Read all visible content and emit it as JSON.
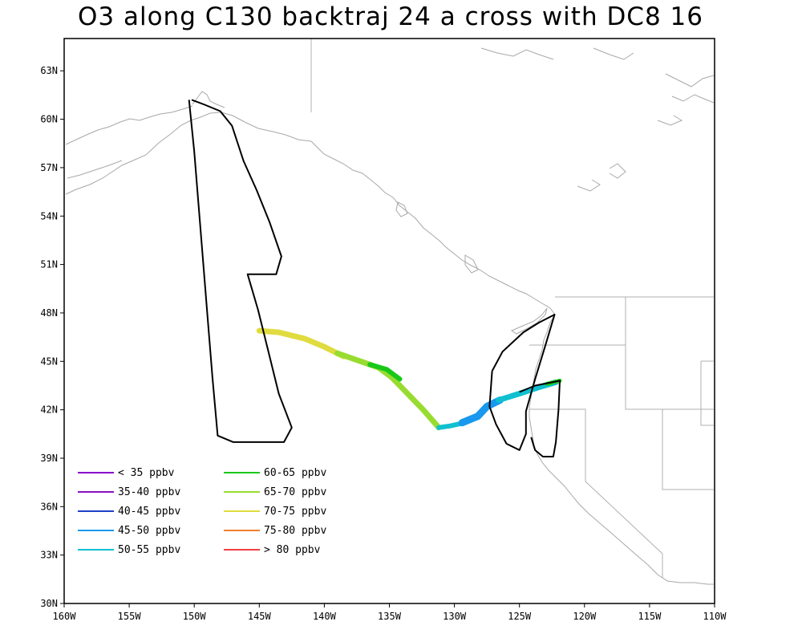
{
  "title": "O3 along C130 backtraj 24 a cross with DC8 16",
  "axes": {
    "lon_range": [
      -160,
      -110
    ],
    "lat_range": [
      30,
      65
    ],
    "x_ticks": [
      {
        "value": -160,
        "label": "160W"
      },
      {
        "value": -155,
        "label": "155W"
      },
      {
        "value": -150,
        "label": "150W"
      },
      {
        "value": -145,
        "label": "145W"
      },
      {
        "value": -140,
        "label": "140W"
      },
      {
        "value": -135,
        "label": "135W"
      },
      {
        "value": -130,
        "label": "130W"
      },
      {
        "value": -125,
        "label": "125W"
      },
      {
        "value": -120,
        "label": "120W"
      },
      {
        "value": -115,
        "label": "115W"
      },
      {
        "value": -110,
        "label": "110W"
      }
    ],
    "y_ticks": [
      {
        "value": 30,
        "label": "30N"
      },
      {
        "value": 33,
        "label": "33N"
      },
      {
        "value": 36,
        "label": "36N"
      },
      {
        "value": 39,
        "label": "39N"
      },
      {
        "value": 42,
        "label": "42N"
      },
      {
        "value": 45,
        "label": "45N"
      },
      {
        "value": 48,
        "label": "48N"
      },
      {
        "value": 51,
        "label": "51N"
      },
      {
        "value": 54,
        "label": "54N"
      },
      {
        "value": 57,
        "label": "57N"
      },
      {
        "value": 60,
        "label": "60N"
      },
      {
        "value": 63,
        "label": "63N"
      }
    ]
  },
  "legend": {
    "placement": "bottom-left",
    "entries": [
      {
        "label": "< 35 ppbv",
        "color": "#8800cc"
      },
      {
        "label": "35-40 ppbv",
        "color": "#8a10c0"
      },
      {
        "label": "40-45 ppbv",
        "color": "#2040c8"
      },
      {
        "label": "45-50 ppbv",
        "color": "#1898ee"
      },
      {
        "label": "50-55 ppbv",
        "color": "#10c0d0"
      },
      {
        "label": "60-65 ppbv",
        "color": "#18c818"
      },
      {
        "label": "65-70 ppbv",
        "color": "#98dc30"
      },
      {
        "label": "70-75 ppbv",
        "color": "#e0dc40"
      },
      {
        "label": "75-80 ppbv",
        "color": "#f08030"
      },
      {
        "label": "> 80 ppbv",
        "color": "#f04040"
      }
    ]
  },
  "flight_track": [
    [
      -150.2,
      61.2
    ],
    [
      -149.2,
      60.9
    ],
    [
      -148.0,
      60.5
    ],
    [
      -147.1,
      59.6
    ],
    [
      -146.2,
      57.4
    ],
    [
      -145.2,
      55.6
    ],
    [
      -144.2,
      53.6
    ],
    [
      -143.3,
      51.5
    ],
    [
      -143.7,
      50.4
    ],
    [
      -145.9,
      50.4
    ],
    [
      -145.1,
      48.2
    ],
    [
      -144.3,
      45.6
    ],
    [
      -143.5,
      43.0
    ],
    [
      -142.5,
      40.9
    ],
    [
      -143.1,
      40.0
    ],
    [
      -147.0,
      40.0
    ],
    [
      -148.2,
      40.4
    ],
    [
      -148.6,
      44.0
    ],
    [
      -149.0,
      48.0
    ],
    [
      -149.6,
      54.0
    ],
    [
      -150.0,
      58.0
    ],
    [
      -150.4,
      61.2
    ]
  ],
  "flight_track_2": [
    [
      -127.1,
      44.4
    ],
    [
      -126.3,
      45.6
    ],
    [
      -124.7,
      46.8
    ],
    [
      -123.5,
      47.4
    ],
    [
      -122.3,
      47.9
    ],
    [
      -123.0,
      46.0
    ],
    [
      -123.8,
      43.9
    ],
    [
      -124.5,
      41.9
    ],
    [
      -124.5,
      40.5
    ],
    [
      -125.0,
      39.5
    ],
    [
      -126.0,
      39.9
    ],
    [
      -126.8,
      41.1
    ],
    [
      -127.3,
      42.2
    ],
    [
      -127.1,
      44.4
    ]
  ],
  "flight_track_3": [
    [
      -125.0,
      43.1
    ],
    [
      -123.8,
      43.5
    ],
    [
      -122.5,
      43.7
    ],
    [
      -121.9,
      43.8
    ],
    [
      -122.0,
      42.0
    ],
    [
      -122.2,
      40.0
    ],
    [
      -122.4,
      39.1
    ],
    [
      -123.2,
      39.1
    ],
    [
      -123.8,
      39.5
    ],
    [
      -124.1,
      40.3
    ]
  ],
  "trajectory": [
    {
      "color": "#e0dc40",
      "width": 7,
      "points": [
        [
          -145.0,
          46.9
        ],
        [
          -143.5,
          46.8
        ],
        [
          -141.5,
          46.4
        ],
        [
          -140.0,
          45.9
        ],
        [
          -138.5,
          45.3
        ]
      ]
    },
    {
      "color": "#98dc30",
      "width": 7,
      "points": [
        [
          -139.0,
          45.5
        ],
        [
          -137.2,
          45.0
        ],
        [
          -135.8,
          44.6
        ],
        [
          -134.8,
          44.0
        ],
        [
          -133.6,
          43.0
        ],
        [
          -132.4,
          42.0
        ],
        [
          -131.2,
          40.9
        ]
      ]
    },
    {
      "color": "#18c818",
      "width": 6,
      "points": [
        [
          -136.5,
          44.8
        ],
        [
          -135.2,
          44.5
        ],
        [
          -134.2,
          43.9
        ]
      ]
    },
    {
      "color": "#10c0d0",
      "width": 6,
      "points": [
        [
          -131.2,
          40.9
        ],
        [
          -130.3,
          41.0
        ],
        [
          -129.2,
          41.2
        ]
      ]
    },
    {
      "color": "#1898ee",
      "width": 9,
      "points": [
        [
          -129.4,
          41.2
        ],
        [
          -128.2,
          41.6
        ],
        [
          -127.5,
          42.2
        ],
        [
          -126.5,
          42.6
        ]
      ]
    },
    {
      "color": "#10c0d0",
      "width": 7,
      "points": [
        [
          -126.6,
          42.6
        ],
        [
          -125.0,
          43.0
        ],
        [
          -123.5,
          43.4
        ],
        [
          -122.2,
          43.7
        ]
      ]
    },
    {
      "color": "#18c818",
      "width": 5,
      "points": [
        [
          -122.9,
          43.6
        ],
        [
          -121.9,
          43.8
        ]
      ]
    }
  ]
}
